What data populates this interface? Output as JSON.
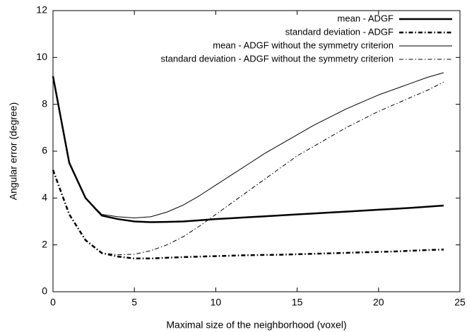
{
  "chart_data": {
    "type": "line",
    "xlabel": "Maximal size of the neighborhood (voxel)",
    "ylabel": "Angular error (degree)",
    "x": [
      0,
      1,
      2,
      3,
      4,
      5,
      6,
      7,
      8,
      9,
      10,
      11,
      12,
      13,
      14,
      15,
      16,
      17,
      18,
      19,
      20,
      21,
      22,
      23,
      24
    ],
    "series": [
      {
        "name": "mean - ADGF",
        "color": "#000000",
        "width": 2.5,
        "dash": "solid",
        "values": [
          9.2,
          5.5,
          4.0,
          3.25,
          3.1,
          3.0,
          2.97,
          2.98,
          3.0,
          3.05,
          3.1,
          3.14,
          3.18,
          3.22,
          3.26,
          3.3,
          3.34,
          3.38,
          3.42,
          3.46,
          3.5,
          3.54,
          3.58,
          3.63,
          3.68
        ]
      },
      {
        "name": "standard deviation - ADGF",
        "color": "#000000",
        "width": 2.5,
        "dash": "dashdot",
        "values": [
          5.2,
          3.3,
          2.2,
          1.65,
          1.5,
          1.42,
          1.42,
          1.45,
          1.48,
          1.5,
          1.52,
          1.54,
          1.56,
          1.57,
          1.58,
          1.6,
          1.62,
          1.64,
          1.66,
          1.68,
          1.7,
          1.72,
          1.75,
          1.78,
          1.8
        ]
      },
      {
        "name": "mean - ADGF without the symmetry criterion",
        "color": "#000000",
        "width": 1,
        "dash": "solid",
        "values": [
          9.2,
          5.5,
          4.0,
          3.3,
          3.2,
          3.15,
          3.2,
          3.4,
          3.7,
          4.1,
          4.55,
          5.0,
          5.45,
          5.9,
          6.3,
          6.7,
          7.1,
          7.45,
          7.8,
          8.1,
          8.4,
          8.65,
          8.9,
          9.15,
          9.35
        ]
      },
      {
        "name": "standard deviation - ADGF without the symmetry criterion",
        "color": "#000000",
        "width": 1,
        "dash": "dashdot",
        "values": [
          5.2,
          3.3,
          2.2,
          1.65,
          1.58,
          1.6,
          1.75,
          2.0,
          2.35,
          2.8,
          3.3,
          3.8,
          4.3,
          4.8,
          5.3,
          5.8,
          6.2,
          6.6,
          7.0,
          7.35,
          7.7,
          8.0,
          8.3,
          8.6,
          8.95
        ]
      }
    ],
    "xlim": [
      0,
      25
    ],
    "xticks": [
      0,
      5,
      10,
      15,
      20,
      25
    ],
    "ylim": [
      0,
      12
    ],
    "yticks": [
      0,
      2,
      4,
      6,
      8,
      10,
      12
    ],
    "legend": "top-right"
  }
}
